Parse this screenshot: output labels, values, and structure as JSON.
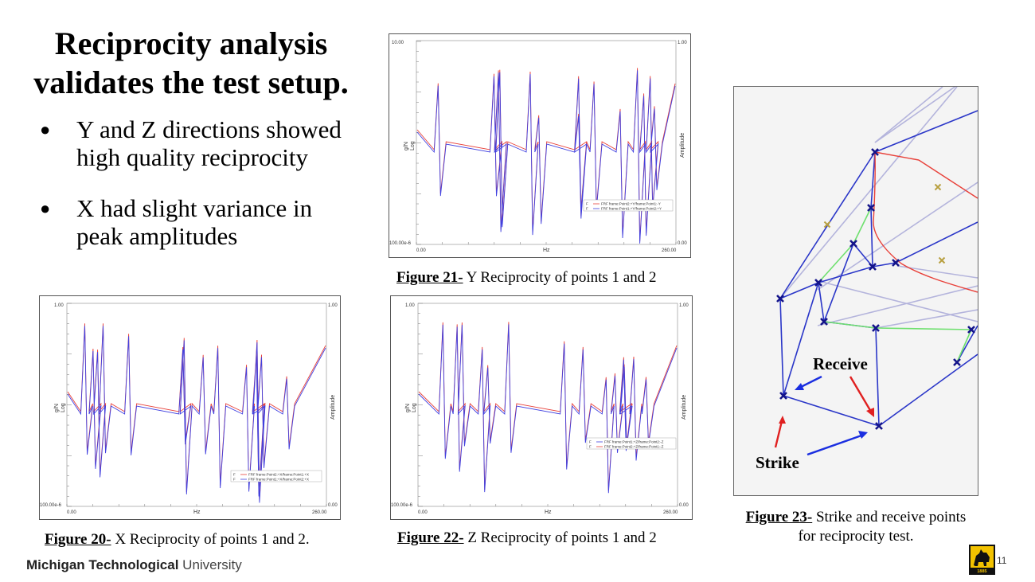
{
  "title": {
    "line1": "Reciprocity analysis",
    "line2": "validates the test setup."
  },
  "bullets": [
    {
      "line1": "Y and Z directions showed",
      "line2": "high quality reciprocity"
    },
    {
      "line1": "X had slight variance in",
      "line2": "peak amplitudes"
    }
  ],
  "bullet_symbol": "●",
  "figures": {
    "fig20": {
      "label": "Figure 20-",
      "caption": " X Reciprocity of points 1 and 2.",
      "y_top": "1.00",
      "y_bottom": "100.00e-6",
      "y2_top": "1.00",
      "y2_bottom": "0.00",
      "x_left": "0.00",
      "x_right": "260.00",
      "xlabel": "Hz",
      "ylabel": "g/N",
      "yscale": "Log",
      "y2label": "Amplitude",
      "legend": [
        {
          "key": "F",
          "text": "FRF frame:Point2:+X/frame:Point1:+X"
        },
        {
          "key": "F",
          "text": "FRF frame:Point1:+X/frame:Point2:+X"
        }
      ]
    },
    "fig21": {
      "label": "Figure 21-",
      "caption": " Y Reciprocity of points 1 and 2",
      "y_top": "10.00",
      "y_bottom": "100.00e-6",
      "y2_top": "1.00",
      "y2_bottom": "0.00",
      "x_left": "0.00",
      "x_right": "260.00",
      "xlabel": "Hz",
      "ylabel": "g/N",
      "yscale": "Log",
      "y2label": "Amplitude",
      "legend": [
        {
          "key": "F",
          "text": "FRF frame:Point2:+Y/frame:Point1:-Y"
        },
        {
          "key": "F",
          "text": "FRF frame:Point1:+Y/frame:Point2:+Y"
        }
      ]
    },
    "fig22": {
      "label": "Figure 22-",
      "caption": " Z Reciprocity of points 1 and 2",
      "y_top": "1.00",
      "y_bottom": "100.00e-6",
      "y2_top": "1.00",
      "y2_bottom": "0.00",
      "x_left": "0.00",
      "x_right": "260.00",
      "xlabel": "Hz",
      "ylabel": "g/N",
      "yscale": "Log",
      "y2label": "Amplitude",
      "legend": [
        {
          "key": "F",
          "text": "FRF frame:Point1:+Z/frame:Point2:-Z"
        },
        {
          "key": "F",
          "text": "FRF frame:Point2:+Z/frame:Point1:-Z"
        }
      ]
    },
    "fig23": {
      "label": "Figure 23-",
      "caption_line1": " Strike and receive points",
      "caption_line2": "for reciprocity test.",
      "receive_label": "Receive",
      "strike_label": "Strike"
    }
  },
  "footer": {
    "brand_bold": "Michigan Technological",
    "brand_light": " University",
    "page_number": "11",
    "badge_year": "1885"
  },
  "colors": {
    "series_red": "#e8413a",
    "series_blue": "#4040e0",
    "strike_arrow": "#e02020",
    "receive_arrow": "#1a2ee0",
    "badge_gold": "#f2c200"
  }
}
